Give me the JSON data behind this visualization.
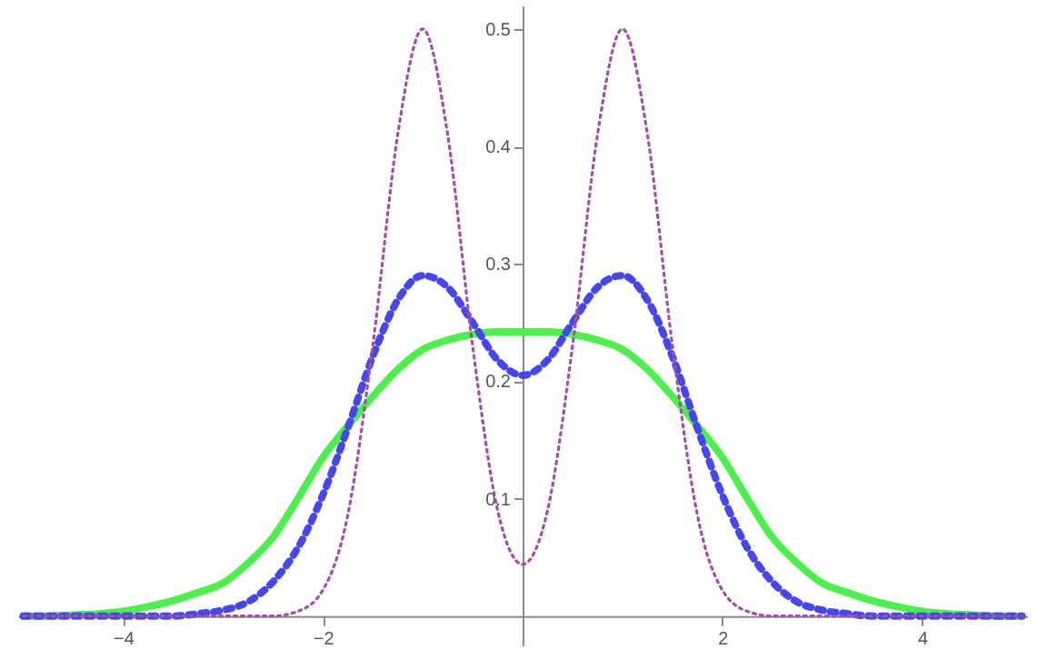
{
  "chart_data": {
    "type": "line",
    "x": [
      -5,
      -4.75,
      -4.5,
      -4.25,
      -4,
      -3.75,
      -3.5,
      -3.25,
      -3,
      -2.75,
      -2.5,
      -2.25,
      -2,
      -1.75,
      -1.5,
      -1.25,
      -1,
      -0.75,
      -0.5,
      -0.25,
      0,
      0.25,
      0.5,
      0.75,
      1,
      1.25,
      1.5,
      1.75,
      2,
      2.25,
      2.5,
      2.75,
      3,
      3.25,
      3.5,
      3.75,
      4,
      4.25,
      4.5,
      4.75,
      5
    ],
    "series": [
      {
        "color": "#4cf04c",
        "line_style": "solid",
        "values": [
          0,
          0,
          0.001,
          0.002,
          0.004,
          0.008,
          0.013,
          0.02,
          0.028,
          0.045,
          0.067,
          0.1,
          0.135,
          0.162,
          0.187,
          0.21,
          0.227,
          0.235,
          0.24,
          0.242,
          0.242,
          0.242,
          0.24,
          0.235,
          0.227,
          0.21,
          0.187,
          0.162,
          0.135,
          0.1,
          0.067,
          0.045,
          0.028,
          0.02,
          0.013,
          0.008,
          0.004,
          0.002,
          0.001,
          0,
          0
        ]
      },
      {
        "color": "#4646f0",
        "line_style": "dashed",
        "values": [
          0,
          0,
          0,
          0,
          0,
          0,
          0,
          0.002,
          0.005,
          0.012,
          0.029,
          0.058,
          0.103,
          0.16,
          0.221,
          0.269,
          0.29,
          0.28,
          0.25,
          0.218,
          0.205,
          0.218,
          0.25,
          0.28,
          0.29,
          0.269,
          0.221,
          0.16,
          0.103,
          0.058,
          0.029,
          0.012,
          0.005,
          0.002,
          0,
          0,
          0,
          0,
          0,
          0,
          0
        ]
      },
      {
        "color": "#a050a8",
        "line_style": "dotted",
        "values": [
          0,
          0,
          0,
          0,
          0,
          0,
          0,
          0,
          0,
          0,
          0,
          0.004,
          0.022,
          0.086,
          0.23,
          0.41,
          0.5,
          0.41,
          0.23,
          0.09,
          0.044,
          0.09,
          0.23,
          0.41,
          0.5,
          0.41,
          0.23,
          0.086,
          0.022,
          0.004,
          0,
          0,
          0,
          0,
          0,
          0,
          0,
          0,
          0,
          0,
          0
        ]
      }
    ],
    "xlim": [
      -5.05,
      5.05
    ],
    "ylim": [
      -0.025,
      0.52
    ],
    "xticks": [
      -4,
      -2,
      2,
      4
    ],
    "yticks": [
      0.1,
      0.2,
      0.3,
      0.4,
      0.5
    ],
    "grid": false
  }
}
